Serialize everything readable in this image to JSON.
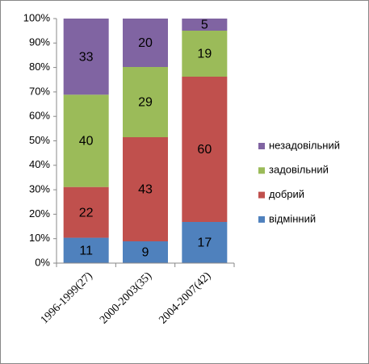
{
  "chart_data": {
    "type": "bar",
    "stacking": "percent",
    "categories": [
      "1996-1999(27)",
      "2000-2003(35)",
      "2004-2007(42)"
    ],
    "series": [
      {
        "name": "відмінний",
        "color": "#4f81bd",
        "values": [
          11,
          9,
          17
        ]
      },
      {
        "name": "добрий",
        "color": "#c0504d",
        "values": [
          22,
          43,
          60
        ]
      },
      {
        "name": "задовільний",
        "color": "#9bbb59",
        "values": [
          40,
          29,
          19
        ]
      },
      {
        "name": "незадовільний",
        "color": "#8064a2",
        "values": [
          33,
          20,
          5
        ]
      }
    ],
    "ylim": [
      0,
      100
    ],
    "yticks": [
      {
        "value": 0,
        "label": "0%"
      },
      {
        "value": 10,
        "label": "10%"
      },
      {
        "value": 20,
        "label": "20%"
      },
      {
        "value": 30,
        "label": "30%"
      },
      {
        "value": 40,
        "label": "40%"
      },
      {
        "value": 50,
        "label": "50%"
      },
      {
        "value": 60,
        "label": "60%"
      },
      {
        "value": 70,
        "label": "70%"
      },
      {
        "value": 80,
        "label": "80%"
      },
      {
        "value": 90,
        "label": "90%"
      },
      {
        "value": 100,
        "label": "100%"
      }
    ],
    "legend": "right"
  }
}
